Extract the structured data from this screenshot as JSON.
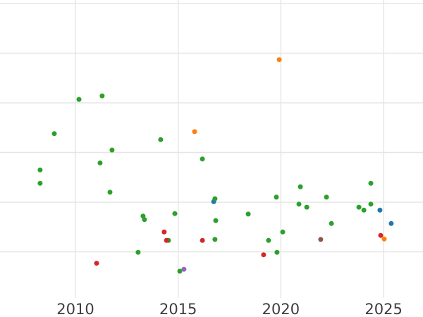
{
  "figure": {
    "title": "",
    "background_color": "#ffffff",
    "grid_color": "#e5e5e5",
    "tick_label_color": "#3d3d3d"
  },
  "chart_data": {
    "type": "scatter",
    "title": "",
    "xlabel": "",
    "ylabel": "",
    "grid": true,
    "legend": "none",
    "x_ticks": [
      2010,
      2015,
      2020,
      2025
    ],
    "x_tick_labels": [
      "2010",
      "2015",
      "2020",
      "2025"
    ],
    "x_range": [
      2006.3,
      2026.9
    ],
    "y_tick_labels_visible": false,
    "y_gridline_units": [
      1,
      2,
      3,
      4,
      5,
      6
    ],
    "y_range": [
      0.1,
      6.1
    ],
    "marker": "circle",
    "series": [
      {
        "name": "blue",
        "color": "#1f77b4",
        "points": [
          [
            2016.73,
            2.01
          ],
          [
            2024.82,
            1.84
          ],
          [
            2025.37,
            1.57
          ]
        ]
      },
      {
        "name": "green",
        "color": "#2ca02c",
        "points": [
          [
            2010.17,
            4.07
          ],
          [
            2011.3,
            4.14
          ],
          [
            2008.97,
            3.38
          ],
          [
            2014.15,
            3.26
          ],
          [
            2011.78,
            3.05
          ],
          [
            2016.18,
            2.87
          ],
          [
            2011.2,
            2.79
          ],
          [
            2008.28,
            2.65
          ],
          [
            2008.28,
            2.38
          ],
          [
            2011.68,
            2.2
          ],
          [
            2014.84,
            1.77
          ],
          [
            2013.29,
            1.72
          ],
          [
            2013.36,
            1.65
          ],
          [
            2014.53,
            1.23
          ],
          [
            2013.05,
            0.99
          ],
          [
            2015.08,
            0.61
          ],
          [
            2016.79,
            2.07
          ],
          [
            2016.83,
            1.63
          ],
          [
            2016.79,
            1.25
          ],
          [
            2018.41,
            1.76
          ],
          [
            2019.78,
            2.1
          ],
          [
            2019.4,
            1.23
          ],
          [
            2019.81,
            0.99
          ],
          [
            2020.09,
            1.4
          ],
          [
            2020.95,
            2.31
          ],
          [
            2020.88,
            1.96
          ],
          [
            2021.26,
            1.9
          ],
          [
            2022.22,
            2.1
          ],
          [
            2022.46,
            1.57
          ],
          [
            2024.38,
            2.38
          ],
          [
            2023.8,
            1.9
          ],
          [
            2024.04,
            1.84
          ],
          [
            2024.38,
            1.96
          ]
        ]
      },
      {
        "name": "red",
        "color": "#d62728",
        "points": [
          [
            2011.03,
            0.77
          ],
          [
            2014.32,
            1.4
          ],
          [
            2014.43,
            1.23
          ],
          [
            2016.18,
            1.23
          ],
          [
            2019.16,
            0.94
          ],
          [
            2024.86,
            1.33
          ]
        ]
      },
      {
        "name": "orange",
        "color": "#ff7f0e",
        "points": [
          [
            2015.8,
            3.42
          ],
          [
            2019.92,
            4.87
          ],
          [
            2025.03,
            1.26
          ]
        ]
      },
      {
        "name": "brown",
        "color": "#8c564b",
        "points": [
          [
            2021.94,
            1.25
          ]
        ]
      },
      {
        "name": "purple",
        "color": "#9467bd",
        "points": [
          [
            2015.28,
            0.65
          ]
        ]
      }
    ]
  }
}
